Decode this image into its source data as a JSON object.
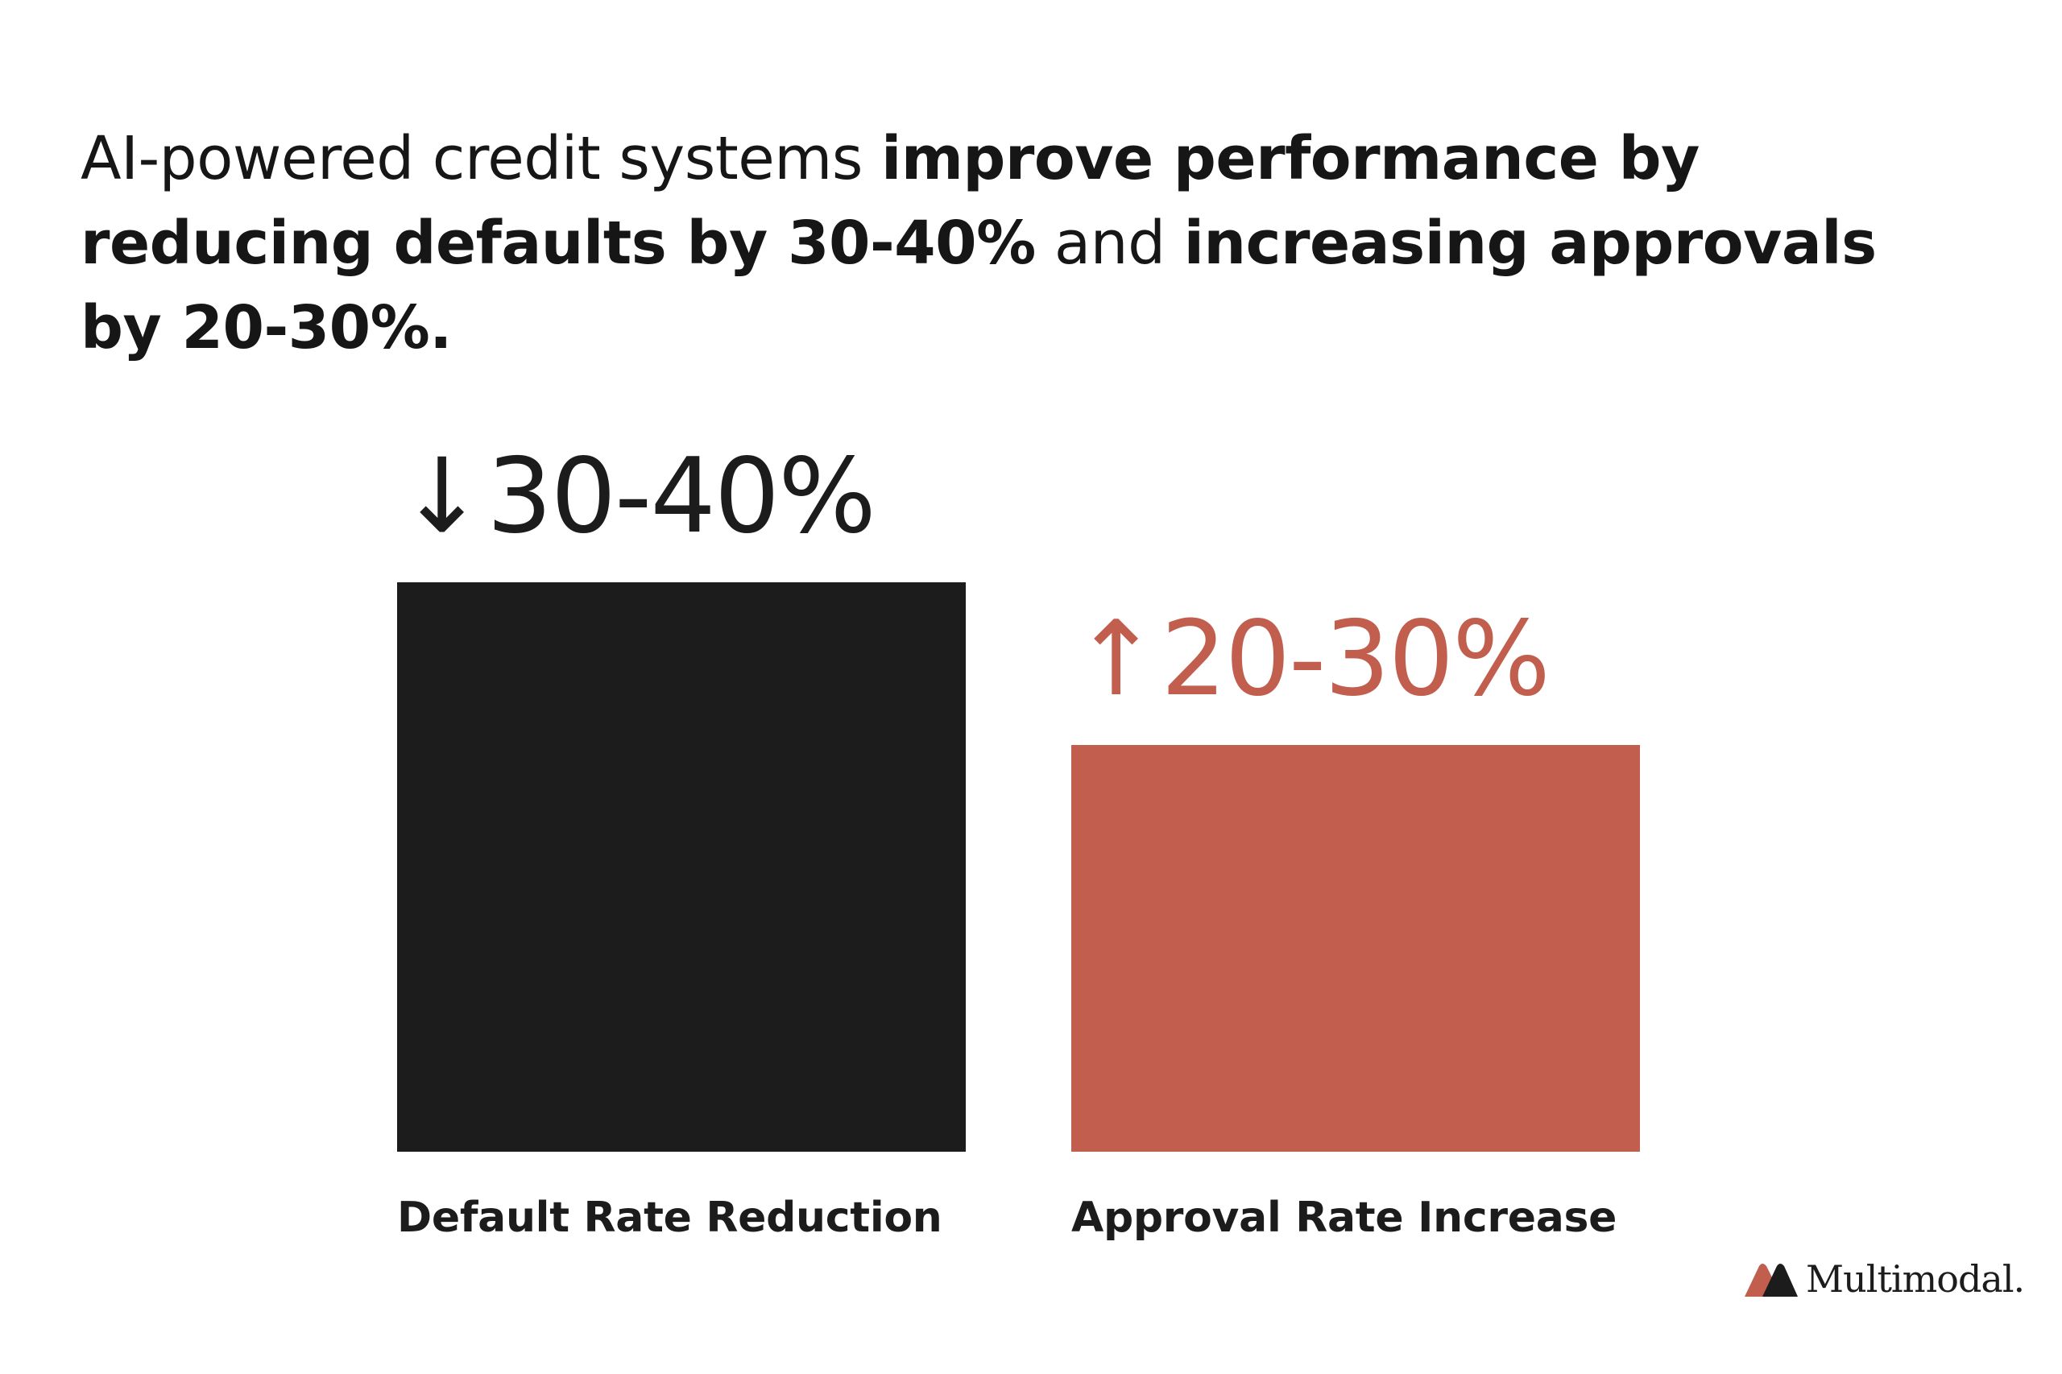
{
  "headline": {
    "part1": "AI-powered credit systems ",
    "bold1": "improve performance by reducing defaults by 30-40%",
    "part2": " and ",
    "bold2": "increasing approvals by 20-30%."
  },
  "chart_data": {
    "type": "bar",
    "title": "",
    "categories": [
      "Default Rate Reduction",
      "Approval Rate Increase"
    ],
    "values": [
      35,
      25
    ],
    "value_labels": [
      "30-40%",
      "20-30%"
    ],
    "directions": [
      "↓",
      "↑"
    ],
    "colors": [
      "#1c1c1c",
      "#c15e4d"
    ],
    "xlabel": "",
    "ylabel": ""
  },
  "brand": {
    "name": "Multimodal.",
    "accent": "#c15e4d",
    "dark": "#1c1c1c"
  }
}
